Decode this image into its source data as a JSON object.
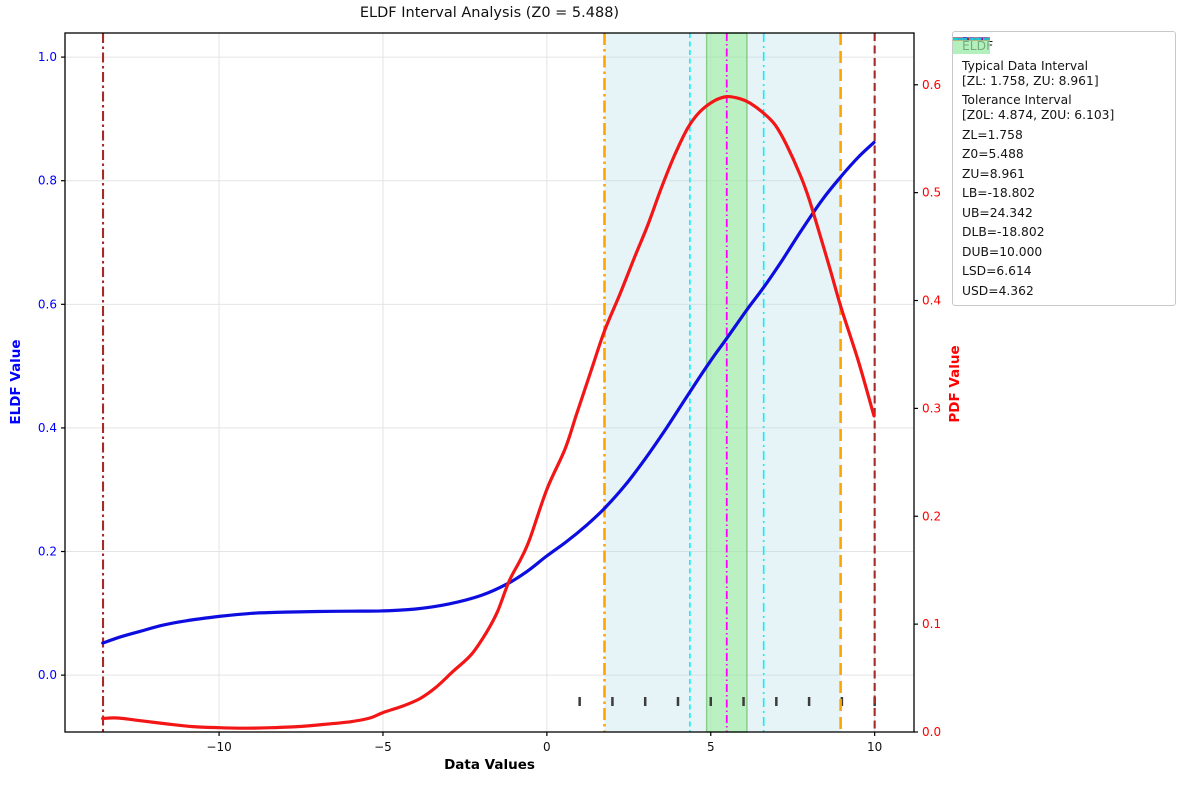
{
  "title": "ELDF Interval Analysis (Z0 = 5.488)",
  "axes": {
    "x_label": "Data Values",
    "y_left_label": "ELDF Value",
    "y_right_label": "PDF Value"
  },
  "chart_data": {
    "type": "line",
    "title": "ELDF Interval Analysis (Z0 = 5.488)",
    "xlabel": "Data Values",
    "ylabel_left": "ELDF Value",
    "ylabel_right": "PDF Value",
    "grid": true,
    "legend_position": "outside-right",
    "x_range": [
      -14.7,
      11.2
    ],
    "y_left_range": [
      -0.092,
      1.039
    ],
    "y_right_range": [
      0.0,
      0.648
    ],
    "x_tick_values": [
      -10,
      -5,
      0,
      5,
      10
    ],
    "x_tick_labels": [
      "−10",
      "−5",
      "0",
      "5",
      "10"
    ],
    "y_left_tick_values": [
      0.0,
      0.2,
      0.4,
      0.6,
      0.8,
      1.0
    ],
    "y_left_tick_labels": [
      "0.0",
      "0.2",
      "0.4",
      "0.6",
      "0.8",
      "1.0"
    ],
    "y_right_tick_values": [
      0.0,
      0.1,
      0.2,
      0.3,
      0.4,
      0.5,
      0.6
    ],
    "y_right_tick_labels": [
      "0.0",
      "0.1",
      "0.2",
      "0.3",
      "0.4",
      "0.5",
      "0.6"
    ],
    "axis_colors": {
      "left": "#0000ff",
      "right": "#ff0000",
      "bottom": "#111111"
    },
    "series": [
      {
        "name": "ELDF",
        "axis": "left",
        "color": "#0d0de0",
        "width": 3.2,
        "points": [
          [
            -13.55,
            0.052
          ],
          [
            -13.0,
            0.062
          ],
          [
            -12.4,
            0.071
          ],
          [
            -11.7,
            0.081
          ],
          [
            -11.0,
            0.088
          ],
          [
            -10.0,
            0.095
          ],
          [
            -9.0,
            0.1
          ],
          [
            -8.0,
            0.102
          ],
          [
            -7.0,
            0.103
          ],
          [
            -6.0,
            0.1035
          ],
          [
            -5.0,
            0.104
          ],
          [
            -4.0,
            0.107
          ],
          [
            -3.0,
            0.115
          ],
          [
            -2.0,
            0.129
          ],
          [
            -1.2,
            0.148
          ],
          [
            -0.6,
            0.168
          ],
          [
            0.0,
            0.193
          ],
          [
            0.6,
            0.216
          ],
          [
            1.2,
            0.242
          ],
          [
            1.76,
            0.27
          ],
          [
            2.4,
            0.308
          ],
          [
            3.0,
            0.35
          ],
          [
            3.6,
            0.396
          ],
          [
            4.36,
            0.458
          ],
          [
            5.0,
            0.509
          ],
          [
            5.49,
            0.545
          ],
          [
            6.1,
            0.591
          ],
          [
            6.61,
            0.627
          ],
          [
            7.2,
            0.673
          ],
          [
            7.72,
            0.716
          ],
          [
            8.4,
            0.769
          ],
          [
            8.96,
            0.806
          ],
          [
            9.5,
            0.838
          ],
          [
            9.98,
            0.862
          ]
        ]
      },
      {
        "name": "PDF",
        "axis": "right",
        "color": "#f31616",
        "width": 3.2,
        "points": [
          [
            -13.55,
            0.0125
          ],
          [
            -13.1,
            0.013
          ],
          [
            -12.4,
            0.0105
          ],
          [
            -11.6,
            0.0075
          ],
          [
            -10.8,
            0.005
          ],
          [
            -10.0,
            0.004
          ],
          [
            -9.2,
            0.0035
          ],
          [
            -8.4,
            0.004
          ],
          [
            -7.6,
            0.005
          ],
          [
            -6.8,
            0.007
          ],
          [
            -6.0,
            0.0095
          ],
          [
            -5.4,
            0.013
          ],
          [
            -5.0,
            0.018
          ],
          [
            -4.4,
            0.024
          ],
          [
            -3.87,
            0.031
          ],
          [
            -3.4,
            0.041
          ],
          [
            -2.87,
            0.056
          ],
          [
            -2.3,
            0.072
          ],
          [
            -1.83,
            0.093
          ],
          [
            -1.5,
            0.112
          ],
          [
            -1.15,
            0.14
          ],
          [
            -0.8,
            0.16
          ],
          [
            -0.52,
            0.179
          ],
          [
            0.0,
            0.225
          ],
          [
            0.55,
            0.262
          ],
          [
            0.91,
            0.295
          ],
          [
            1.35,
            0.335
          ],
          [
            1.76,
            0.372
          ],
          [
            2.23,
            0.406
          ],
          [
            2.7,
            0.442
          ],
          [
            3.08,
            0.47
          ],
          [
            3.5,
            0.505
          ],
          [
            3.9,
            0.535
          ],
          [
            4.3,
            0.56
          ],
          [
            4.67,
            0.575
          ],
          [
            5.1,
            0.585
          ],
          [
            5.49,
            0.589
          ],
          [
            5.9,
            0.587
          ],
          [
            6.2,
            0.583
          ],
          [
            6.6,
            0.574
          ],
          [
            6.96,
            0.563
          ],
          [
            7.3,
            0.545
          ],
          [
            7.72,
            0.517
          ],
          [
            8.0,
            0.494
          ],
          [
            8.33,
            0.461
          ],
          [
            8.65,
            0.428
          ],
          [
            8.97,
            0.394
          ],
          [
            9.5,
            0.344
          ],
          [
            9.98,
            0.293
          ]
        ]
      }
    ],
    "regions": [
      {
        "name": "typical-data-interval",
        "label": "Typical Data Interval [ZL: 1.758, ZU: 8.961]",
        "x0": 1.758,
        "x1": 8.961,
        "color": "#ADD8E6",
        "opacity": 0.3,
        "edge": "none"
      },
      {
        "name": "tolerance-interval",
        "label": "Tolerance Interval [Z0L: 4.874, Z0U: 6.103]",
        "x0": 4.874,
        "x1": 6.103,
        "color": "#90EE90",
        "opacity": 0.5,
        "edge": "#74c274"
      }
    ],
    "vlines": [
      {
        "name": "ZL",
        "value": 1.758,
        "x_drawn": 1.758,
        "shown": true,
        "color": "#FFA500",
        "dash": "12 4 2.5 4",
        "width": 2.6
      },
      {
        "name": "Z0",
        "value": 5.488,
        "x_drawn": 5.488,
        "shown": true,
        "color": "#FF00FF",
        "dash": "8 3 1.5 3",
        "width": 1.8
      },
      {
        "name": "ZU",
        "value": 8.961,
        "x_drawn": 8.961,
        "shown": true,
        "color": "#FFA500",
        "dash": "12 6",
        "width": 2.6
      },
      {
        "name": "LB",
        "value": -18.802,
        "x_drawn": null,
        "shown": false,
        "color": "#800080",
        "dash": "7 3 1.5 3",
        "width": 1.6
      },
      {
        "name": "UB",
        "value": 24.342,
        "x_drawn": null,
        "shown": false,
        "color": "#800080",
        "dash": "4 2.5",
        "width": 1.6
      },
      {
        "name": "DLB",
        "value": -18.802,
        "x_drawn": -13.54,
        "shown": true,
        "color": "#A52A2A",
        "dash": "10 3.5 2.5 3.5",
        "width": 2.1
      },
      {
        "name": "DUB",
        "value": 10.0,
        "x_drawn": 10.0,
        "shown": true,
        "color": "#A52A2A",
        "dash": "8 4.5",
        "width": 2.1
      },
      {
        "name": "LSD",
        "value": 6.614,
        "x_drawn": 6.614,
        "shown": true,
        "color": "#00F5FF",
        "dash": "9 4 2 4",
        "width": 1.6
      },
      {
        "name": "USD",
        "value": 4.362,
        "x_drawn": 4.362,
        "shown": true,
        "color": "#00F5FF",
        "dash": "5 3.5",
        "width": 1.6
      }
    ],
    "rug": {
      "values": [
        1,
        2,
        3,
        4,
        5,
        6,
        7,
        8,
        9,
        10
      ],
      "color": "#3c3c3c"
    },
    "grid_color": "#e4e4e4"
  },
  "legend": {
    "items": [
      {
        "id": "eldf",
        "lines": [
          "ELDF"
        ],
        "swatch": "line",
        "color": "#0d0de0",
        "width": 3.5,
        "dash": ""
      },
      {
        "id": "typical",
        "lines": [
          "Typical Data Interval",
          "[ZL: 1.758, ZU: 8.961]"
        ],
        "swatch": "patch",
        "color": "#ADD8E6",
        "opacity": 0.38
      },
      {
        "id": "tolerance",
        "lines": [
          "Tolerance Interval",
          "[Z0L: 4.874, Z0U: 6.103]"
        ],
        "swatch": "patch",
        "color": "#90EE90",
        "opacity": 0.55
      },
      {
        "id": "zl",
        "lines": [
          "ZL=1.758"
        ],
        "swatch": "line",
        "color": "#FFA500",
        "width": 2.6,
        "dash": "10 4 2.5 4"
      },
      {
        "id": "z0",
        "lines": [
          "Z0=5.488"
        ],
        "swatch": "line",
        "color": "#FF00FF",
        "width": 1.8,
        "dash": "7 3 1.5 3"
      },
      {
        "id": "zu",
        "lines": [
          "ZU=8.961"
        ],
        "swatch": "line",
        "color": "#FFA500",
        "width": 2.6,
        "dash": "10 5"
      },
      {
        "id": "lb",
        "lines": [
          "LB=-18.802"
        ],
        "swatch": "line",
        "color": "#800080",
        "width": 1.6,
        "dash": "7 3 1.5 3"
      },
      {
        "id": "ub",
        "lines": [
          "UB=24.342"
        ],
        "swatch": "line",
        "color": "#800080",
        "width": 1.6,
        "dash": "4 2.5"
      },
      {
        "id": "dlb",
        "lines": [
          "DLB=-18.802"
        ],
        "swatch": "line",
        "color": "#A52A2A",
        "width": 2.1,
        "dash": "9 3.5 2.5 3.5"
      },
      {
        "id": "dub",
        "lines": [
          "DUB=10.000"
        ],
        "swatch": "line",
        "color": "#A52A2A",
        "width": 2.1,
        "dash": "7 4"
      },
      {
        "id": "lsd",
        "lines": [
          "LSD=6.614"
        ],
        "swatch": "line",
        "color": "#00E5FF",
        "width": 1.6,
        "dash": "8 4 2 4"
      },
      {
        "id": "usd",
        "lines": [
          "USD=4.362"
        ],
        "swatch": "line",
        "color": "#00E5FF",
        "width": 1.6,
        "dash": "4.5 3.5"
      }
    ]
  }
}
